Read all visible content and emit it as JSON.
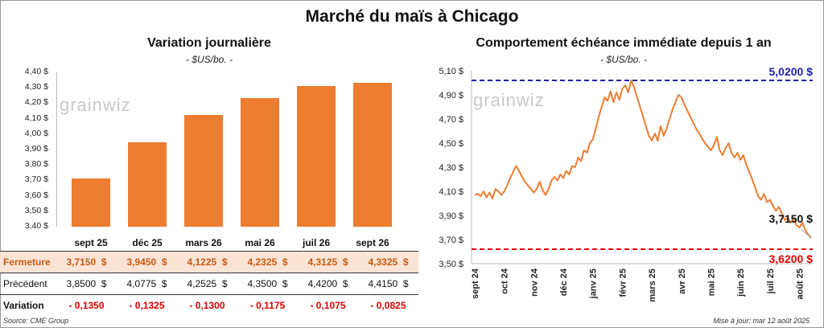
{
  "title": "Marché du maïs à Chicago",
  "watermark": "grainwiz",
  "source": "Source: CME Group",
  "updated": "Mise à jour: mar 12 août 2025",
  "colors": {
    "bar": "#ed7d31",
    "line": "#ed7d31",
    "high_line": "#2020b0",
    "low_line": "#e00000"
  },
  "chart_data": [
    {
      "type": "bar",
      "title": "Variation journalière",
      "unit": "- $US/bo. -",
      "categories": [
        "sept 25",
        "déc 25",
        "mars 26",
        "mai 26",
        "juil 26",
        "sept 26"
      ],
      "values": [
        3.715,
        3.945,
        4.1225,
        4.2325,
        4.3125,
        4.3325
      ],
      "ylim": [
        3.4,
        4.4
      ],
      "yticks": [
        "4,40 $",
        "4,30 $",
        "4,20 $",
        "4,10 $",
        "4,00 $",
        "3,90 $",
        "3,80 $",
        "3,70 $",
        "3,60 $",
        "3,50 $",
        "3,40 $"
      ],
      "table": {
        "rows": [
          {
            "label": "Fermeture",
            "values": [
              "3,7150  $",
              "3,9450  $",
              "4,1225  $",
              "4,2325  $",
              "4,3125  $",
              "4,3325  $"
            ]
          },
          {
            "label": "Précédent",
            "values": [
              "3,8500  $",
              "4,0775  $",
              "4,2525  $",
              "4,3500  $",
              "4,4200  $",
              "4,4150  $"
            ]
          },
          {
            "label": "Variation",
            "values": [
              "- 0,1350",
              "- 0,1325",
              "- 0,1300",
              "- 0,1175",
              "- 0,1075",
              "- 0,0825"
            ]
          }
        ]
      }
    },
    {
      "type": "line",
      "title": "Comportement  échéance immédiate  depuis 1 an",
      "unit": "- $US/bo. -",
      "ylim": [
        3.5,
        5.1
      ],
      "yticks": [
        "5,10 $",
        "4,90 $",
        "4,70 $",
        "4,50 $",
        "4,30 $",
        "4,10 $",
        "3,90 $",
        "3,70 $",
        "3,50 $"
      ],
      "xticks": [
        "sept 24",
        "oct 24",
        "nov 24",
        "déc 24",
        "janv 25",
        "févr 25",
        "mars 25",
        "avr 25",
        "mai 25",
        "juin 25",
        "juil 25",
        "août 25"
      ],
      "high": {
        "value": 5.02,
        "label": "5,0200 $"
      },
      "low": {
        "value": 3.62,
        "label": "3,6200 $"
      },
      "last": {
        "value": 3.715,
        "label": "3,7150 $"
      },
      "points": [
        [
          0,
          4.07
        ],
        [
          0.1,
          4.08
        ],
        [
          0.2,
          4.06
        ],
        [
          0.3,
          4.1
        ],
        [
          0.4,
          4.05
        ],
        [
          0.5,
          4.09
        ],
        [
          0.6,
          4.04
        ],
        [
          0.7,
          4.12
        ],
        [
          0.8,
          4.1
        ],
        [
          0.9,
          4.07
        ],
        [
          1.0,
          4.1
        ],
        [
          1.1,
          4.15
        ],
        [
          1.2,
          4.21
        ],
        [
          1.3,
          4.26
        ],
        [
          1.4,
          4.31
        ],
        [
          1.5,
          4.27
        ],
        [
          1.6,
          4.22
        ],
        [
          1.7,
          4.18
        ],
        [
          1.8,
          4.15
        ],
        [
          1.9,
          4.12
        ],
        [
          2.0,
          4.09
        ],
        [
          2.1,
          4.12
        ],
        [
          2.2,
          4.18
        ],
        [
          2.3,
          4.11
        ],
        [
          2.4,
          4.07
        ],
        [
          2.5,
          4.12
        ],
        [
          2.6,
          4.19
        ],
        [
          2.7,
          4.22
        ],
        [
          2.8,
          4.19
        ],
        [
          2.9,
          4.24
        ],
        [
          3.0,
          4.21
        ],
        [
          3.1,
          4.27
        ],
        [
          3.2,
          4.24
        ],
        [
          3.3,
          4.31
        ],
        [
          3.4,
          4.3
        ],
        [
          3.5,
          4.38
        ],
        [
          3.6,
          4.35
        ],
        [
          3.7,
          4.44
        ],
        [
          3.8,
          4.42
        ],
        [
          3.9,
          4.5
        ],
        [
          4.0,
          4.53
        ],
        [
          4.1,
          4.62
        ],
        [
          4.2,
          4.72
        ],
        [
          4.3,
          4.8
        ],
        [
          4.4,
          4.88
        ],
        [
          4.5,
          4.85
        ],
        [
          4.6,
          4.93
        ],
        [
          4.7,
          4.84
        ],
        [
          4.8,
          4.92
        ],
        [
          4.9,
          4.86
        ],
        [
          5.0,
          4.95
        ],
        [
          5.1,
          4.98
        ],
        [
          5.2,
          4.92
        ],
        [
          5.3,
          5.02
        ],
        [
          5.4,
          4.96
        ],
        [
          5.5,
          4.88
        ],
        [
          5.6,
          4.8
        ],
        [
          5.7,
          4.72
        ],
        [
          5.8,
          4.64
        ],
        [
          5.9,
          4.56
        ],
        [
          6.0,
          4.52
        ],
        [
          6.1,
          4.58
        ],
        [
          6.2,
          4.52
        ],
        [
          6.3,
          4.64
        ],
        [
          6.4,
          4.56
        ],
        [
          6.5,
          4.62
        ],
        [
          6.6,
          4.7
        ],
        [
          6.7,
          4.78
        ],
        [
          6.8,
          4.84
        ],
        [
          6.9,
          4.9
        ],
        [
          7.0,
          4.88
        ],
        [
          7.1,
          4.82
        ],
        [
          7.2,
          4.77
        ],
        [
          7.3,
          4.72
        ],
        [
          7.4,
          4.67
        ],
        [
          7.5,
          4.62
        ],
        [
          7.6,
          4.58
        ],
        [
          7.7,
          4.54
        ],
        [
          7.8,
          4.5
        ],
        [
          7.9,
          4.47
        ],
        [
          8.0,
          4.44
        ],
        [
          8.1,
          4.48
        ],
        [
          8.2,
          4.55
        ],
        [
          8.3,
          4.44
        ],
        [
          8.4,
          4.4
        ],
        [
          8.5,
          4.46
        ],
        [
          8.6,
          4.5
        ],
        [
          8.7,
          4.42
        ],
        [
          8.8,
          4.38
        ],
        [
          8.9,
          4.42
        ],
        [
          9.0,
          4.36
        ],
        [
          9.1,
          4.4
        ],
        [
          9.2,
          4.32
        ],
        [
          9.3,
          4.26
        ],
        [
          9.4,
          4.2
        ],
        [
          9.5,
          4.13
        ],
        [
          9.6,
          4.06
        ],
        [
          9.7,
          4.03
        ],
        [
          9.8,
          4.08
        ],
        [
          9.9,
          4.01
        ],
        [
          10.0,
          4.03
        ],
        [
          10.1,
          3.98
        ],
        [
          10.2,
          3.94
        ],
        [
          10.3,
          3.97
        ],
        [
          10.4,
          3.92
        ],
        [
          10.5,
          3.86
        ],
        [
          10.6,
          3.88
        ],
        [
          10.7,
          3.84
        ],
        [
          10.8,
          3.87
        ],
        [
          10.9,
          3.82
        ],
        [
          11.0,
          3.8
        ],
        [
          11.1,
          3.84
        ],
        [
          11.2,
          3.78
        ],
        [
          11.3,
          3.74
        ],
        [
          11.4,
          3.715
        ]
      ]
    }
  ]
}
